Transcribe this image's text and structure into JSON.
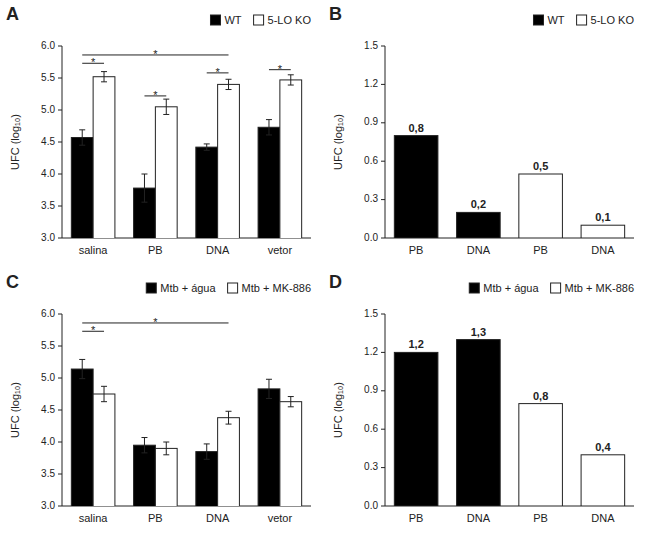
{
  "chart_data": [
    {
      "type": "bar",
      "title": "A",
      "ylabel": "UFC (log₁₀)",
      "categories": [
        "salina",
        "PB",
        "DNA",
        "vetor"
      ],
      "series": [
        {
          "name": "WT",
          "color": "black",
          "values": [
            4.57,
            3.78,
            4.42,
            4.73
          ],
          "errors": [
            0.12,
            0.22,
            0.05,
            0.12
          ]
        },
        {
          "name": "5-LO KO",
          "color": "white",
          "values": [
            5.52,
            5.05,
            5.4,
            5.47
          ],
          "errors": [
            0.08,
            0.12,
            0.08,
            0.08
          ]
        }
      ],
      "ylim": [
        3.0,
        6.0
      ],
      "yticks": [
        {
          "value": 3.0,
          "label": "3.0"
        },
        3.5,
        {
          "value": 4.0,
          "label": "4.0"
        },
        4.5,
        {
          "value": 5.0,
          "label": "5.0"
        },
        5.5,
        {
          "value": 6.0,
          "label": "6.0"
        }
      ],
      "grid": false,
      "legend": "upper right",
      "annotations": [
        {
          "text": "*",
          "y": 5.73,
          "from": {
            "category": "salina",
            "series": "WT"
          },
          "to": {
            "category": "salina",
            "series": "5-LO KO"
          }
        },
        {
          "text": "*",
          "y": 5.86,
          "from": {
            "category": "salina",
            "series": "WT"
          },
          "to": {
            "category": "DNA",
            "series": "5-LO KO"
          }
        },
        {
          "text": "*",
          "y": 5.22,
          "from": {
            "category": "PB",
            "series": "WT"
          },
          "to": {
            "category": "PB",
            "series": "5-LO KO"
          }
        },
        {
          "text": "*",
          "y": 5.58,
          "from": {
            "category": "DNA",
            "series": "WT"
          },
          "to": {
            "category": "DNA",
            "series": "5-LO KO"
          }
        },
        {
          "text": "*",
          "y": 5.63,
          "from": {
            "category": "vetor",
            "series": "WT"
          },
          "to": {
            "category": "vetor",
            "series": "5-LO KO"
          }
        }
      ]
    },
    {
      "type": "bar",
      "title": "B",
      "ylabel": "UFC (log₁₀)",
      "categories": [
        "PB",
        "DNA",
        "PB",
        "DNA"
      ],
      "series": [
        {
          "name": "WT",
          "color": "black",
          "values": [
            0.8,
            0.2,
            null,
            null
          ],
          "value_labels": [
            "0,8",
            "0,2",
            null,
            null
          ]
        },
        {
          "name": "5-LO KO",
          "color": "white",
          "values": [
            null,
            null,
            0.5,
            0.1
          ],
          "value_labels": [
            null,
            null,
            "0,5",
            "0,1"
          ]
        }
      ],
      "ylim": [
        0.0,
        1.5
      ],
      "yticks": [
        {
          "value": 0.0,
          "label": "0.0"
        },
        0.3,
        0.6,
        0.9,
        1.2,
        1.5
      ],
      "grid": false,
      "legend": "upper right",
      "data_labels": true
    },
    {
      "type": "bar",
      "title": "C",
      "ylabel": "UFC (log₁₀)",
      "categories": [
        "salina",
        "PB",
        "DNA",
        "vetor"
      ],
      "series": [
        {
          "name": "Mtb + água",
          "color": "black",
          "values": [
            5.14,
            3.95,
            3.85,
            4.83
          ],
          "errors": [
            0.15,
            0.12,
            0.12,
            0.15
          ]
        },
        {
          "name": "Mtb + MK-886",
          "color": "white",
          "values": [
            4.75,
            3.9,
            4.38,
            4.63
          ],
          "errors": [
            0.12,
            0.1,
            0.1,
            0.08
          ]
        }
      ],
      "ylim": [
        3.0,
        6.0
      ],
      "yticks": [
        {
          "value": 3.0,
          "label": "3.0"
        },
        3.5,
        {
          "value": 4.0,
          "label": "4.0"
        },
        4.5,
        {
          "value": 5.0,
          "label": "5.0"
        },
        5.5,
        {
          "value": 6.0,
          "label": "6.0"
        }
      ],
      "grid": false,
      "legend": "upper right",
      "annotations": [
        {
          "text": "*",
          "y": 5.73,
          "from": {
            "category": "salina",
            "series": "Mtb + água"
          },
          "to": {
            "category": "salina",
            "series": "Mtb + MK-886"
          }
        },
        {
          "text": "*",
          "y": 5.86,
          "from": {
            "category": "salina",
            "series": "Mtb + água"
          },
          "to": {
            "category": "DNA",
            "series": "Mtb + MK-886"
          }
        }
      ]
    },
    {
      "type": "bar",
      "title": "D",
      "ylabel": "UFC (log₁₀)",
      "categories": [
        "PB",
        "DNA",
        "PB",
        "DNA"
      ],
      "series": [
        {
          "name": "Mtb + água",
          "color": "black",
          "values": [
            1.2,
            1.3,
            null,
            null
          ],
          "value_labels": [
            "1,2",
            "1,3",
            null,
            null
          ]
        },
        {
          "name": "Mtb + MK-886",
          "color": "white",
          "values": [
            null,
            null,
            0.8,
            0.4
          ],
          "value_labels": [
            null,
            null,
            "0,8",
            "0,4"
          ]
        }
      ],
      "ylim": [
        0.0,
        1.5
      ],
      "yticks": [
        {
          "value": 0.0,
          "label": "0.0"
        },
        0.3,
        0.6,
        0.9,
        1.2,
        1.5
      ],
      "grid": false,
      "legend": "upper right",
      "data_labels": true
    }
  ]
}
